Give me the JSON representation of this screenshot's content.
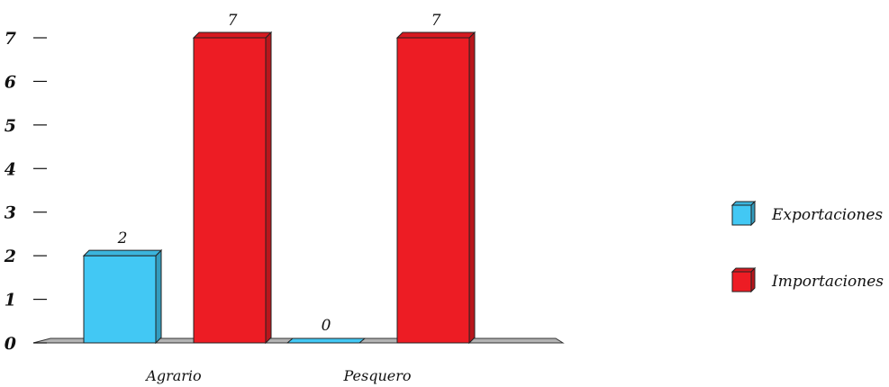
{
  "chart_data": {
    "type": "bar",
    "categories": [
      "Agrario",
      "Pesquero"
    ],
    "series": [
      {
        "name": "Exportaciones",
        "values": [
          2,
          0
        ],
        "color": "#42C8F4"
      },
      {
        "name": "Importaciones",
        "values": [
          7,
          7
        ],
        "color": "#ED1C24"
      }
    ],
    "yticks": [
      "0",
      "1",
      "2",
      "3",
      "4",
      "5",
      "6",
      "7"
    ],
    "ylim": [
      0,
      7
    ],
    "data_labels": [
      [
        "2",
        "0"
      ],
      [
        "7",
        "7"
      ]
    ],
    "legend_position": "right",
    "grid": false,
    "floor_color": "#B3B3B3"
  }
}
